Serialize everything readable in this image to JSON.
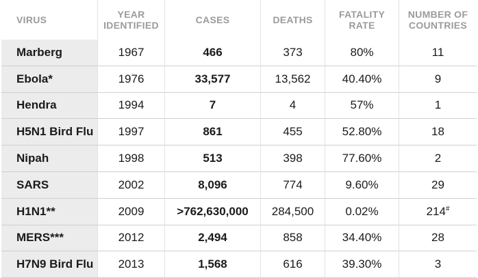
{
  "headers": {
    "virus": "VIRUS",
    "year_line1": "YEAR",
    "year_line2": "IDENTIFIED",
    "cases": "CASES",
    "deaths": "DEATHS",
    "fatality_line1": "FATALITY",
    "fatality_line2": "RATE",
    "countries_line1": "NUMBER OF",
    "countries_line2": "COUNTRIES"
  },
  "rows": [
    {
      "virus": "Marberg",
      "year": "1967",
      "cases": "466",
      "deaths": "373",
      "fatality": "80%",
      "countries": "11",
      "countries_mark": ""
    },
    {
      "virus": "Ebola*",
      "year": "1976",
      "cases": "33,577",
      "deaths": "13,562",
      "fatality": "40.40%",
      "countries": "9",
      "countries_mark": ""
    },
    {
      "virus": "Hendra",
      "year": "1994",
      "cases": "7",
      "deaths": "4",
      "fatality": "57%",
      "countries": "1",
      "countries_mark": ""
    },
    {
      "virus": "H5N1 Bird Flu",
      "year": "1997",
      "cases": "861",
      "deaths": "455",
      "fatality": "52.80%",
      "countries": "18",
      "countries_mark": ""
    },
    {
      "virus": "Nipah",
      "year": "1998",
      "cases": "513",
      "deaths": "398",
      "fatality": "77.60%",
      "countries": "2",
      "countries_mark": ""
    },
    {
      "virus": "SARS",
      "year": "2002",
      "cases": "8,096",
      "deaths": "774",
      "fatality": "9.60%",
      "countries": "29",
      "countries_mark": ""
    },
    {
      "virus": "H1N1**",
      "year": "2009",
      "cases": ">762,630,000",
      "deaths": "284,500",
      "fatality": "0.02%",
      "countries": "214",
      "countries_mark": "#"
    },
    {
      "virus": "MERS***",
      "year": "2012",
      "cases": "2,494",
      "deaths": "858",
      "fatality": "34.40%",
      "countries": "28",
      "countries_mark": ""
    },
    {
      "virus": "H7N9 Bird Flu",
      "year": "2013",
      "cases": "1,568",
      "deaths": "616",
      "fatality": "39.30%",
      "countries": "3",
      "countries_mark": ""
    }
  ]
}
